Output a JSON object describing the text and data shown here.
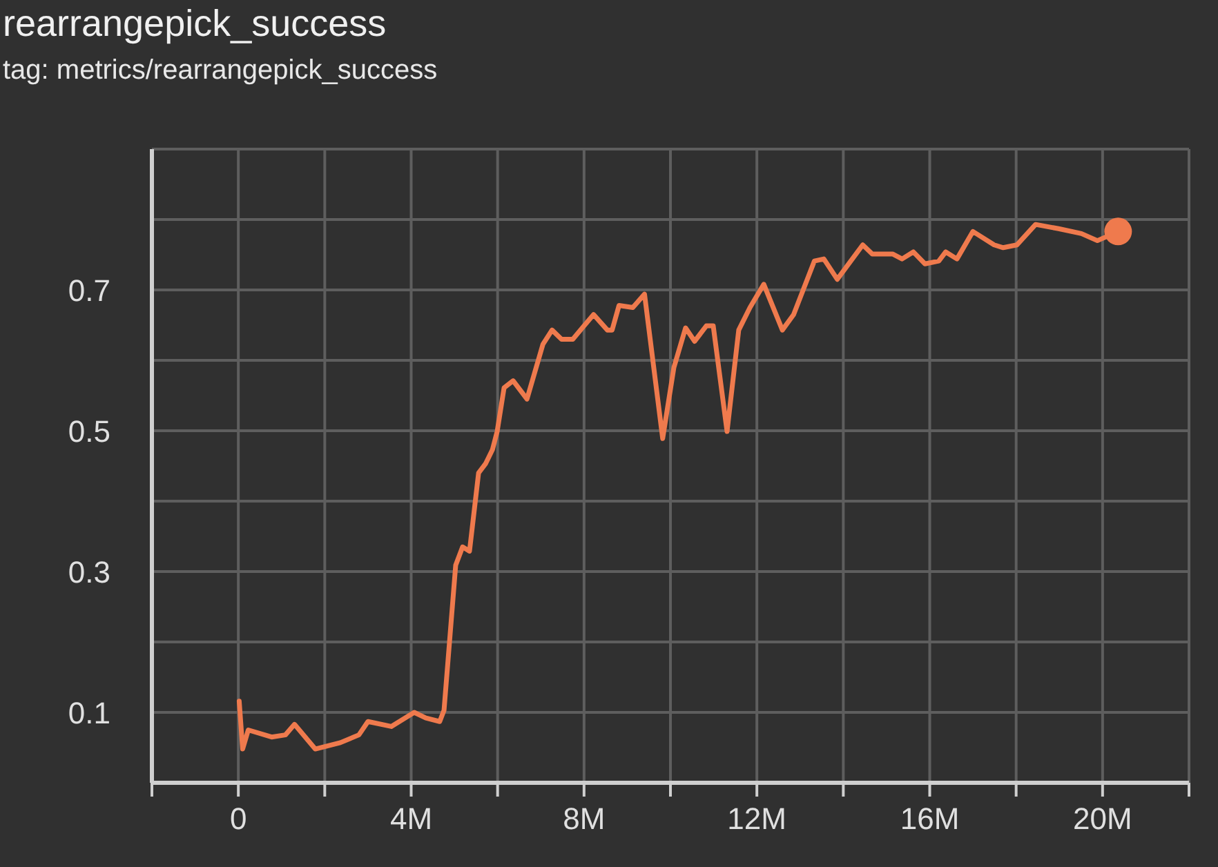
{
  "chart_data": {
    "type": "line",
    "title": "rearrangepick_success",
    "subtitle": "tag: metrics/rearrangepick_success",
    "xlim": [
      -2000000,
      22000000
    ],
    "xticks": [
      {
        "value": -2000000,
        "label": null
      },
      {
        "value": 0,
        "label": "0"
      },
      {
        "value": 2000000,
        "label": null
      },
      {
        "value": 4000000,
        "label": "4M"
      },
      {
        "value": 6000000,
        "label": null
      },
      {
        "value": 8000000,
        "label": "8M"
      },
      {
        "value": 10000000,
        "label": null
      },
      {
        "value": 12000000,
        "label": "12M"
      },
      {
        "value": 14000000,
        "label": null
      },
      {
        "value": 16000000,
        "label": "16M"
      },
      {
        "value": 18000000,
        "label": null
      },
      {
        "value": 20000000,
        "label": "20M"
      },
      {
        "value": 22000000,
        "label": null
      }
    ],
    "ylim": [
      0,
      0.9
    ],
    "yticks": [
      {
        "value": 0,
        "label": null
      },
      0.1,
      {
        "value": 0.2,
        "label": null
      },
      0.3,
      {
        "value": 0.4,
        "label": null
      },
      0.5,
      {
        "value": 0.6,
        "label": null
      },
      0.7,
      {
        "value": 0.8,
        "label": null
      },
      {
        "value": 0.9,
        "label": null
      }
    ],
    "grid": true,
    "marker": "none",
    "line_style": "solid",
    "series": [
      {
        "color": "#ef7a4d",
        "x": [
          20000,
          100000,
          230000,
          770000,
          1090000,
          1300000,
          1780000,
          2360000,
          2790000,
          3000000,
          3540000,
          4070000,
          4340000,
          4660000,
          4760000,
          5030000,
          5190000,
          5350000,
          5560000,
          5720000,
          5880000,
          5990000,
          6150000,
          6360000,
          6680000,
          7050000,
          7260000,
          7480000,
          7740000,
          7960000,
          8220000,
          8540000,
          8650000,
          8810000,
          9130000,
          9400000,
          9820000,
          10080000,
          10350000,
          10560000,
          10830000,
          10990000,
          11310000,
          11580000,
          11840000,
          12160000,
          12590000,
          12850000,
          13330000,
          13550000,
          13860000,
          14450000,
          14670000,
          15140000,
          15360000,
          15620000,
          15890000,
          16210000,
          16370000,
          16630000,
          17000000,
          17490000,
          17700000,
          18020000,
          18450000,
          18980000,
          19510000,
          19880000,
          20360000
        ],
        "values": [
          0.116,
          0.048,
          0.075,
          0.065,
          0.068,
          0.083,
          0.048,
          0.057,
          0.068,
          0.087,
          0.08,
          0.1,
          0.092,
          0.087,
          0.103,
          0.309,
          0.335,
          0.329,
          0.44,
          0.453,
          0.473,
          0.499,
          0.561,
          0.571,
          0.545,
          0.623,
          0.643,
          0.63,
          0.63,
          0.646,
          0.665,
          0.643,
          0.643,
          0.678,
          0.675,
          0.694,
          0.489,
          0.59,
          0.646,
          0.627,
          0.649,
          0.649,
          0.499,
          0.643,
          0.675,
          0.708,
          0.643,
          0.665,
          0.741,
          0.744,
          0.715,
          0.764,
          0.751,
          0.751,
          0.744,
          0.754,
          0.737,
          0.741,
          0.754,
          0.744,
          0.783,
          0.764,
          0.76,
          0.764,
          0.793,
          0.787,
          0.78,
          0.77,
          0.783
        ]
      },
      {
        "type": "scatter",
        "color": "#ef7a4d",
        "marker": "circle",
        "x": [
          20360000
        ],
        "values": [
          0.783
        ]
      }
    ]
  }
}
